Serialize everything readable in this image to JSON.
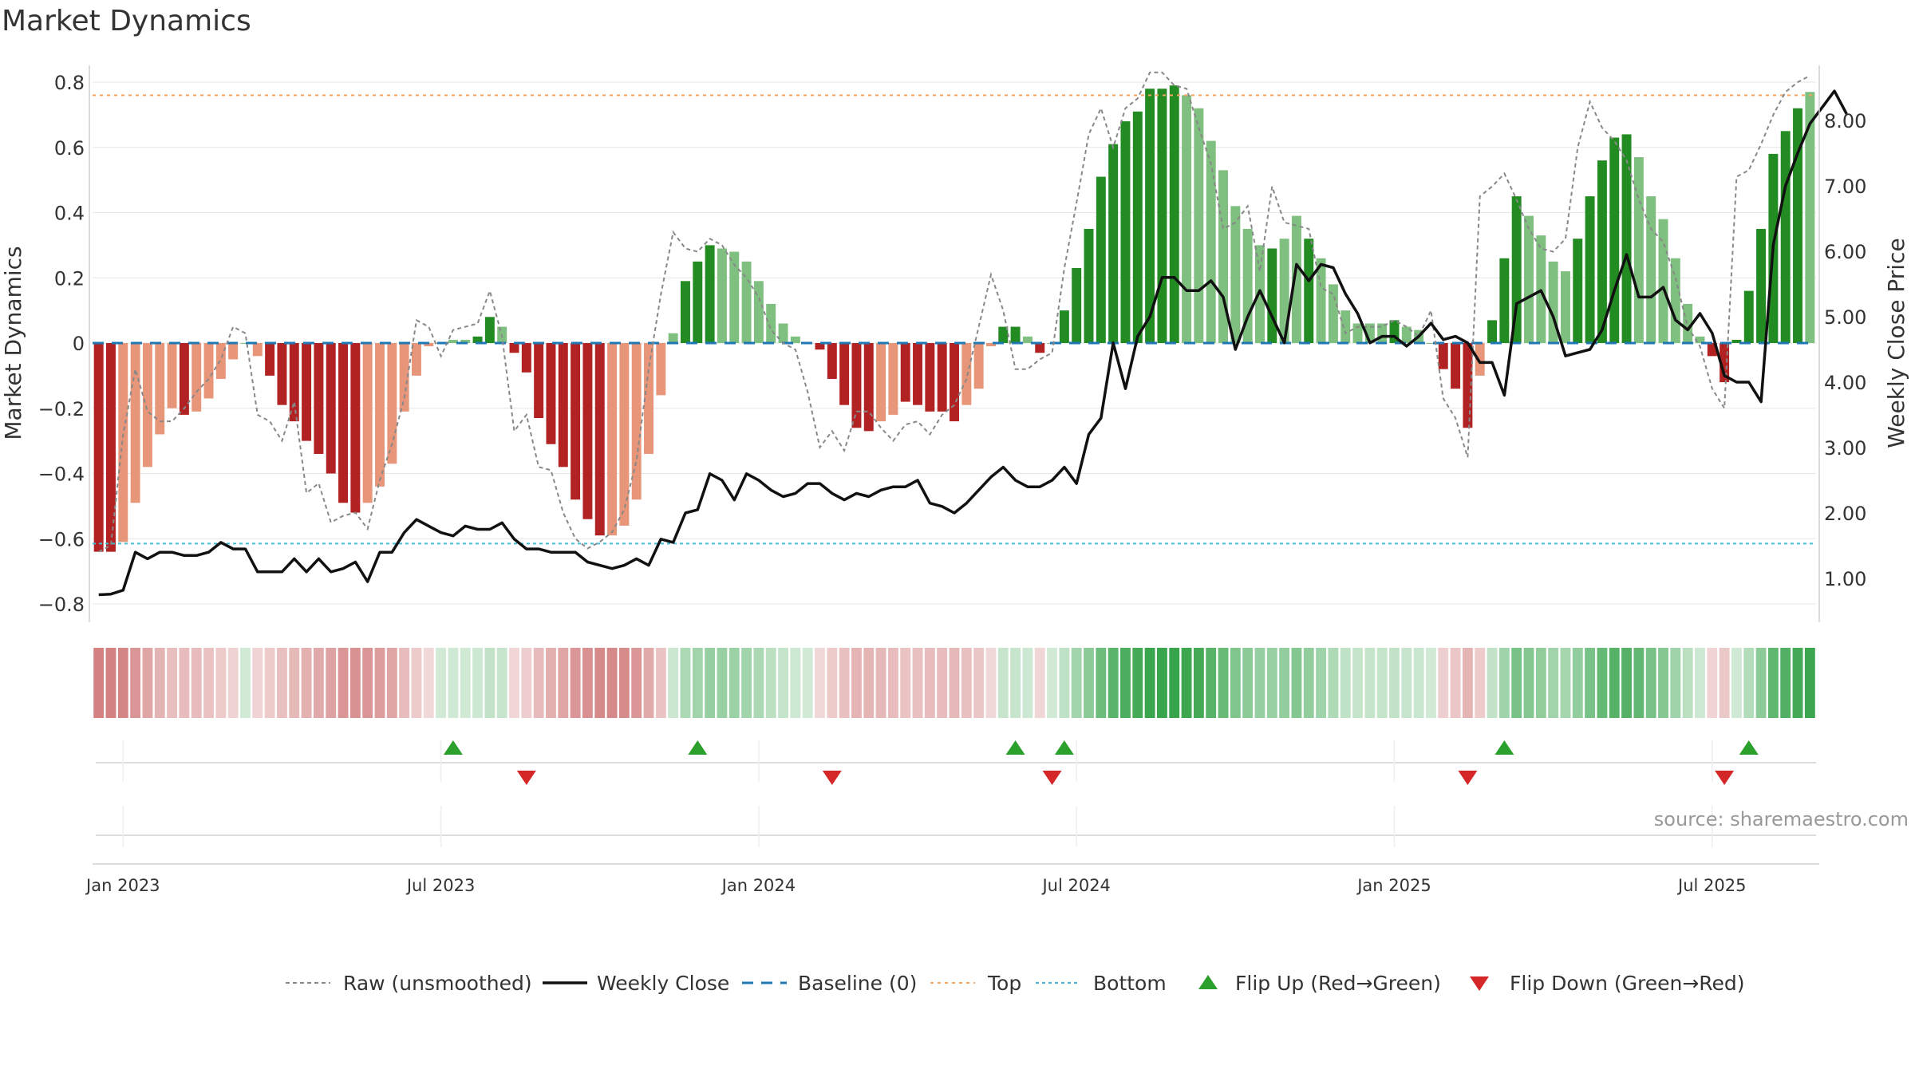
{
  "title": "Market Dynamics",
  "source": "source: sharemaestro.com",
  "colors": {
    "strong_red": "#b22222",
    "light_red": "#e8967a",
    "strong_green": "#228b22",
    "light_green": "#7fbf7f",
    "close": "#111111",
    "raw": "#888888",
    "baseline": "#1f77b4",
    "top": "#f4a460",
    "bottom": "#40bcd8",
    "flip_up": "#2ca02c",
    "flip_down": "#d62728"
  },
  "chart_data": {
    "type": "bar",
    "title": "Market Dynamics",
    "ylabel_left": "Market Dynamics",
    "ylabel_right": "Weekly Close Price",
    "left_ylim": [
      -0.8,
      0.8
    ],
    "right_ylim": [
      1.0,
      8.0
    ],
    "left_ticks": [
      "0.8",
      "0.6",
      "0.4",
      "0.2",
      "0",
      "−0.2",
      "−0.4",
      "−0.6",
      "−0.8"
    ],
    "left_tick_values": [
      0.8,
      0.6,
      0.4,
      0.2,
      0,
      -0.2,
      -0.4,
      -0.6,
      -0.8
    ],
    "right_ticks": [
      "8.00",
      "7.00",
      "6.00",
      "5.00",
      "4.00",
      "3.00",
      "2.00",
      "1.00"
    ],
    "right_tick_values": [
      8,
      7,
      6,
      5,
      4,
      3,
      2,
      1
    ],
    "x_ticks": [
      {
        "label": "Jan 2023",
        "week": 2
      },
      {
        "label": "Jul 2023",
        "week": 28
      },
      {
        "label": "Jan 2024",
        "week": 54
      },
      {
        "label": "Jul 2024",
        "week": 80
      },
      {
        "label": "Jan 2025",
        "week": 106
      },
      {
        "label": "Jul 2025",
        "week": 132
      }
    ],
    "top_level": 0.76,
    "bottom_level": -0.615,
    "grid": true,
    "legend_position": "bottom",
    "legend": [
      "Raw (unsmoothed)",
      "Weekly Close",
      "Baseline (0)",
      "Top",
      "Bottom",
      "Flip Up (Red→Green)",
      "Flip Down (Green→Red)"
    ],
    "smoothed": [
      -0.64,
      -0.64,
      -0.61,
      -0.49,
      -0.38,
      -0.28,
      -0.2,
      -0.22,
      -0.21,
      -0.17,
      -0.11,
      -0.05,
      0.0,
      -0.04,
      -0.1,
      -0.19,
      -0.24,
      -0.3,
      -0.34,
      -0.4,
      -0.49,
      -0.52,
      -0.49,
      -0.44,
      -0.37,
      -0.21,
      -0.1,
      -0.01,
      0.0,
      0.01,
      0.01,
      0.02,
      0.08,
      0.05,
      -0.03,
      -0.09,
      -0.23,
      -0.31,
      -0.38,
      -0.48,
      -0.54,
      -0.59,
      -0.59,
      -0.56,
      -0.48,
      -0.34,
      -0.16,
      0.03,
      0.19,
      0.25,
      0.3,
      0.29,
      0.28,
      0.25,
      0.19,
      0.12,
      0.06,
      0.02,
      0.0,
      -0.02,
      -0.11,
      -0.19,
      -0.26,
      -0.27,
      -0.24,
      -0.22,
      -0.18,
      -0.19,
      -0.21,
      -0.21,
      -0.24,
      -0.19,
      -0.14,
      -0.01,
      0.05,
      0.05,
      0.02,
      -0.03,
      0.0,
      0.1,
      0.23,
      0.35,
      0.51,
      0.61,
      0.68,
      0.71,
      0.78,
      0.78,
      0.79,
      0.76,
      0.72,
      0.62,
      0.53,
      0.42,
      0.35,
      0.3,
      0.29,
      0.32,
      0.39,
      0.32,
      0.26,
      0.18,
      0.1,
      0.06,
      0.06,
      0.06,
      0.07,
      0.05,
      0.04,
      0.0,
      -0.08,
      -0.14,
      -0.26,
      -0.1,
      0.07,
      0.26,
      0.45,
      0.39,
      0.33,
      0.25,
      0.22,
      0.32,
      0.45,
      0.56,
      0.63,
      0.64,
      0.57,
      0.45,
      0.38,
      0.26,
      0.12,
      0.02,
      -0.04,
      -0.12,
      0.01,
      0.16,
      0.35,
      0.58,
      0.65,
      0.72,
      0.77
    ],
    "strength": [
      1,
      1,
      0,
      0,
      0,
      0,
      0,
      1,
      0,
      0,
      0,
      0,
      0,
      0,
      1,
      1,
      1,
      1,
      1,
      1,
      1,
      1,
      0,
      0,
      0,
      0,
      0,
      0,
      0,
      0,
      0,
      1,
      1,
      0,
      1,
      1,
      1,
      1,
      1,
      1,
      1,
      1,
      0,
      0,
      0,
      0,
      0,
      0,
      1,
      1,
      1,
      0,
      0,
      0,
      0,
      0,
      0,
      0,
      0,
      1,
      1,
      1,
      1,
      1,
      0,
      0,
      1,
      1,
      1,
      1,
      1,
      0,
      0,
      0,
      1,
      1,
      0,
      1,
      0,
      1,
      1,
      1,
      1,
      1,
      1,
      1,
      1,
      1,
      1,
      0,
      0,
      0,
      0,
      0,
      0,
      0,
      1,
      0,
      0,
      1,
      0,
      0,
      0,
      0,
      0,
      0,
      1,
      0,
      0,
      0,
      1,
      1,
      1,
      0,
      1,
      1,
      1,
      0,
      0,
      0,
      0,
      1,
      1,
      1,
      1,
      1,
      0,
      0,
      0,
      0,
      0,
      0,
      1,
      1,
      1,
      1,
      1,
      1,
      1,
      1
    ],
    "raw": [
      -0.64,
      -0.62,
      -0.28,
      -0.08,
      -0.21,
      -0.24,
      -0.24,
      -0.2,
      -0.15,
      -0.11,
      -0.05,
      0.05,
      0.03,
      -0.22,
      -0.24,
      -0.3,
      -0.18,
      -0.46,
      -0.43,
      -0.55,
      -0.53,
      -0.52,
      -0.57,
      -0.42,
      -0.31,
      -0.17,
      0.07,
      0.05,
      -0.04,
      0.04,
      0.05,
      0.06,
      0.16,
      0.02,
      -0.27,
      -0.22,
      -0.38,
      -0.39,
      -0.52,
      -0.6,
      -0.63,
      -0.61,
      -0.58,
      -0.51,
      -0.36,
      -0.08,
      0.15,
      0.34,
      0.29,
      0.28,
      0.32,
      0.3,
      0.24,
      0.2,
      0.14,
      0.04,
      0.0,
      -0.02,
      -0.15,
      -0.32,
      -0.27,
      -0.33,
      -0.21,
      -0.21,
      -0.26,
      -0.3,
      -0.25,
      -0.24,
      -0.28,
      -0.22,
      -0.19,
      -0.11,
      0.05,
      0.21,
      0.1,
      -0.08,
      -0.08,
      -0.05,
      -0.03,
      0.23,
      0.43,
      0.64,
      0.72,
      0.6,
      0.72,
      0.75,
      0.83,
      0.83,
      0.79,
      0.78,
      0.66,
      0.55,
      0.35,
      0.37,
      0.42,
      0.22,
      0.48,
      0.37,
      0.36,
      0.35,
      0.17,
      0.15,
      0.03,
      0.05,
      0.05,
      0.05,
      0.07,
      0.05,
      0.02,
      0.1,
      -0.17,
      -0.23,
      -0.35,
      0.45,
      0.48,
      0.52,
      0.44,
      0.35,
      0.29,
      0.28,
      0.32,
      0.6,
      0.74,
      0.66,
      0.62,
      0.56,
      0.44,
      0.35,
      0.31,
      0.2,
      0.05,
      -0.01,
      -0.14,
      -0.2,
      0.51,
      0.53,
      0.61,
      0.7,
      0.77,
      0.8,
      0.82
    ],
    "close": [
      0.75,
      0.76,
      0.82,
      1.4,
      1.3,
      1.4,
      1.4,
      1.35,
      1.35,
      1.4,
      1.55,
      1.45,
      1.45,
      1.1,
      1.1,
      1.1,
      1.3,
      1.1,
      1.3,
      1.1,
      1.15,
      1.25,
      0.95,
      1.4,
      1.4,
      1.7,
      1.9,
      1.8,
      1.7,
      1.65,
      1.8,
      1.75,
      1.75,
      1.85,
      1.6,
      1.45,
      1.45,
      1.4,
      1.4,
      1.4,
      1.25,
      1.2,
      1.15,
      1.2,
      1.3,
      1.2,
      1.6,
      1.55,
      2.0,
      2.05,
      2.6,
      2.5,
      2.2,
      2.6,
      2.5,
      2.35,
      2.25,
      2.3,
      2.45,
      2.45,
      2.3,
      2.2,
      2.3,
      2.25,
      2.35,
      2.4,
      2.4,
      2.5,
      2.15,
      2.1,
      2.0,
      2.15,
      2.35,
      2.55,
      2.7,
      2.5,
      2.4,
      2.4,
      2.5,
      2.7,
      2.45,
      3.2,
      3.45,
      4.6,
      3.9,
      4.7,
      5.0,
      5.6,
      5.6,
      5.4,
      5.4,
      5.55,
      5.3,
      4.5,
      5.0,
      5.4,
      5.0,
      4.6,
      5.8,
      5.55,
      5.8,
      5.75,
      5.35,
      5.05,
      4.6,
      4.7,
      4.7,
      4.55,
      4.7,
      4.9,
      4.65,
      4.7,
      4.6,
      4.3,
      4.3,
      3.8,
      5.2,
      5.3,
      5.4,
      5.0,
      4.4,
      4.45,
      4.5,
      4.8,
      5.4,
      5.95,
      5.3,
      5.3,
      5.45,
      4.95,
      4.8,
      5.05,
      4.75,
      4.1,
      4.0,
      4.0,
      3.7,
      6.1,
      7.0,
      7.5,
      7.95,
      8.2,
      8.45,
      8.1
    ],
    "flip_up_weeks": [
      29,
      49,
      75,
      79,
      115,
      135
    ],
    "flip_down_weeks": [
      35,
      60,
      78,
      112,
      133
    ]
  }
}
